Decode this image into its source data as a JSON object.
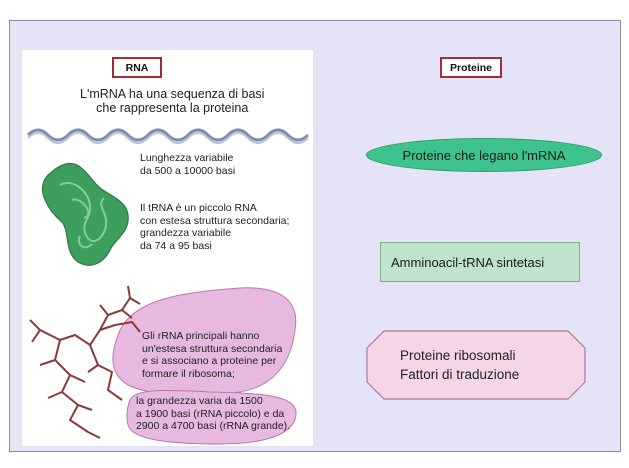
{
  "rna": {
    "header": "RNA",
    "mrna_text": [
      "L'mRNA ha una sequenza di basi",
      "che rappresenta la proteina"
    ],
    "mrna_length": [
      "Lunghezza variabile",
      "da 500 a 10000 basi"
    ],
    "trna_text": [
      "Il tRNA è un piccolo RNA",
      "con estesa struttura secondaria;",
      "grandezza variabile",
      "da 74 a 95 basi"
    ],
    "rrna_text": [
      "Gli rRNA principali hanno",
      "un'estesa struttura secondaria",
      "e si associano a proteine per",
      "formare il ribosoma;"
    ],
    "rrna_size": [
      "la grandezza varia da 1500",
      "a 1900 basi (rRNA piccolo) e da",
      "2900 a 4700 basi (rRNA grande)."
    ]
  },
  "proteine": {
    "header": "Proteine",
    "mrna_binding": "Proteine che legano l'mRNA",
    "synthetase": "Amminoacil-tRNA sintetasi",
    "ribosomal": [
      "Proteine ribosomali",
      "Fattori di traduzione"
    ]
  },
  "colors": {
    "slide_bg": "#e5e3f6",
    "header_border": "#a52a3a",
    "mrna_wave": "#7d8fb0",
    "trna_green": "#3d9e5e",
    "rrna_pink": "#e7b9de",
    "ellipse_green": "#3fc38e",
    "synthetase_green": "#bfe4cb",
    "ribosomal_pink": "#f5d6e9"
  }
}
